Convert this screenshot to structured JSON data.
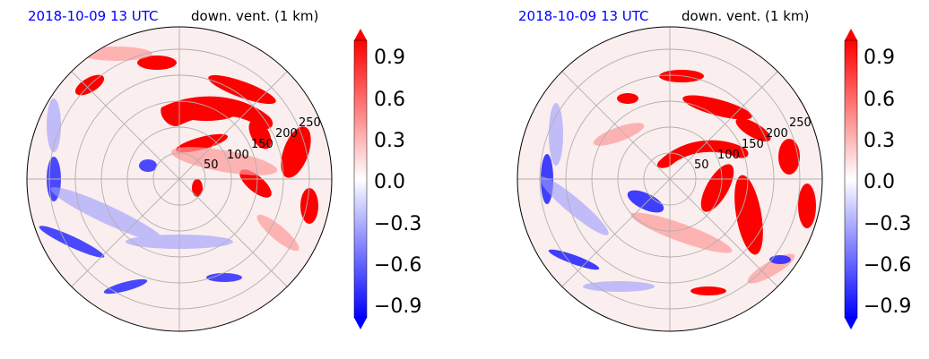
{
  "colors": {
    "title_date": "#0000ff",
    "title_var": "#000000",
    "positive": "#ff0000",
    "negative": "#0000ff",
    "neutral": "#ffffff",
    "grid": "#b0b0b0"
  },
  "chart_data": [
    {
      "type": "heatmap",
      "projection": "polar",
      "title_left": "2018-10-09 13 UTC",
      "title_right": "down. vent. (1 km)",
      "radial_ticks": [
        "50",
        "100",
        "150",
        "200",
        "250"
      ],
      "grid": true,
      "colorbar": {
        "ticks": [
          "0.9",
          "0.6",
          "0.3",
          "0.0",
          "−0.3",
          "−0.6",
          "−0.9"
        ],
        "vmin": -1.0,
        "vmax": 1.0,
        "extend": "both"
      },
      "field_sketch": {
        "positive_regions": [
          "northeast arc, r≈100–200 km",
          "east-southeast band",
          "north rim near r≈260 km"
        ],
        "negative_regions": [
          "west-southwest band",
          "small cluster near center-west"
        ]
      }
    },
    {
      "type": "heatmap",
      "projection": "polar",
      "title_left": "2018-10-09 13 UTC",
      "title_right": "down. vent. (1 km)",
      "radial_ticks": [
        "50",
        "100",
        "150",
        "200",
        "250"
      ],
      "grid": true,
      "colorbar": {
        "ticks": [
          "0.9",
          "0.6",
          "0.3",
          "0.0",
          "−0.3",
          "−0.6",
          "−0.9"
        ],
        "vmin": -1.0,
        "vmax": 1.0,
        "extend": "both"
      },
      "field_sketch": {
        "positive_regions": [
          "northeast spiral, r≈80–200 km",
          "east band r≈150–250 km",
          "south rim"
        ],
        "negative_regions": [
          "west and southwest rim",
          "cluster southwest of center"
        ]
      }
    }
  ]
}
